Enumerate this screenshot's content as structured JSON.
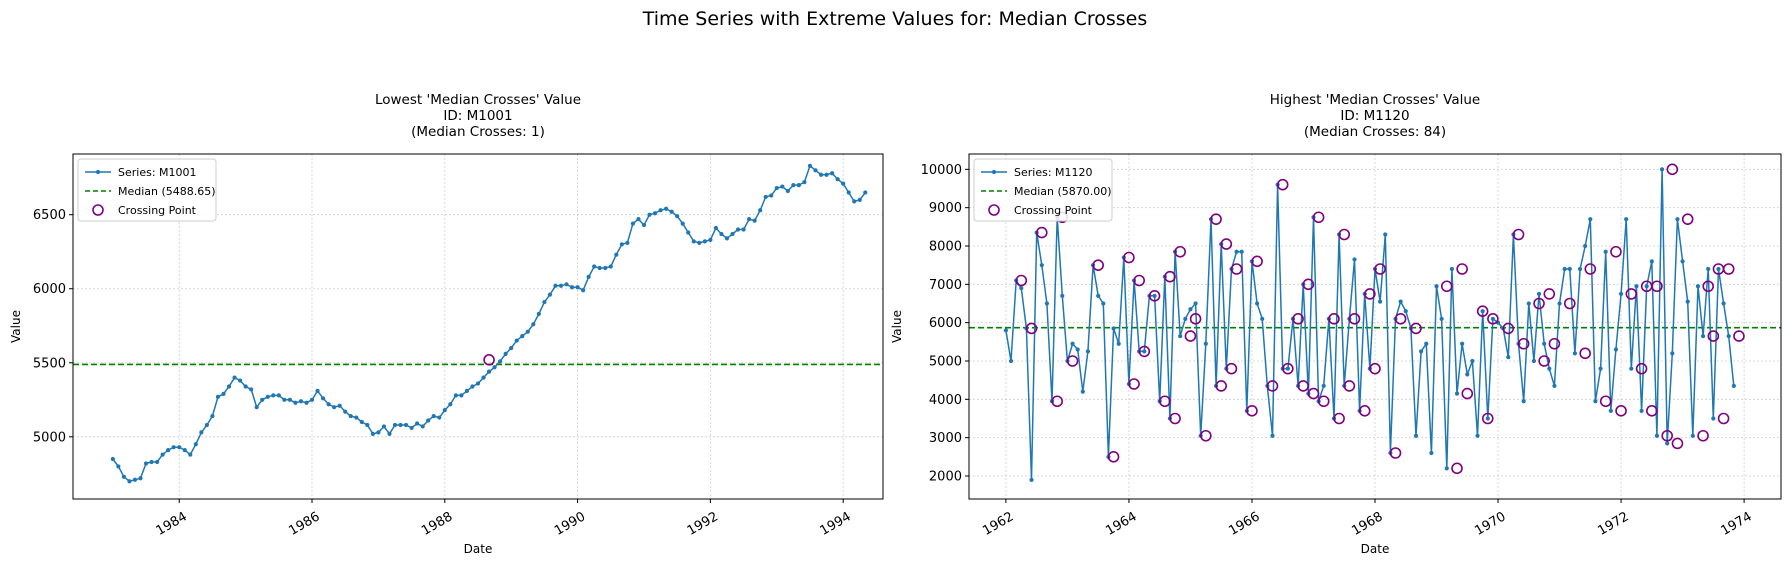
{
  "figure": {
    "suptitle": "Time Series with Extreme Values for: Median Crosses",
    "xlabel": "Date",
    "ylabel": "Value"
  },
  "colors": {
    "series": "#1f77b4",
    "median": "#008000",
    "crossing": "#800080",
    "grid": "#b0b0b0"
  },
  "chart_data": [
    {
      "type": "line",
      "title_lines": [
        "Lowest 'Median Crosses' Value",
        "ID: M1001",
        "(Median Crosses: 1)"
      ],
      "legend": {
        "series": "Series: M1001",
        "median": "Median (5488.65)",
        "crossing": "Crossing Point",
        "position": "upper-left"
      },
      "median": 5488.65,
      "start": [
        1983,
        1
      ],
      "xlim": [
        1982.4,
        1994.6
      ],
      "ylim": [
        4580,
        6910
      ],
      "xticks": [
        "1984",
        "1986",
        "1988",
        "1990",
        "1992",
        "1994"
      ],
      "yticks": [
        "5000",
        "5500",
        "6000",
        "6500"
      ],
      "xtick_rotation": 30,
      "grid": true,
      "values": [
        4850,
        4800,
        4730,
        4700,
        4710,
        4720,
        4820,
        4830,
        4830,
        4880,
        4910,
        4930,
        4930,
        4910,
        4880,
        4950,
        5030,
        5080,
        5140,
        5270,
        5290,
        5340,
        5400,
        5380,
        5340,
        5320,
        5200,
        5250,
        5270,
        5280,
        5280,
        5250,
        5250,
        5230,
        5240,
        5230,
        5250,
        5310,
        5260,
        5220,
        5200,
        5210,
        5170,
        5140,
        5130,
        5100,
        5080,
        5020,
        5030,
        5070,
        5020,
        5080,
        5080,
        5080,
        5060,
        5090,
        5070,
        5110,
        5140,
        5130,
        5180,
        5220,
        5280,
        5280,
        5310,
        5340,
        5360,
        5400,
        5440,
        5470,
        5510,
        5560,
        5600,
        5650,
        5680,
        5710,
        5760,
        5830,
        5910,
        5960,
        6020,
        6020,
        6030,
        6010,
        6010,
        5990,
        6080,
        6150,
        6140,
        6140,
        6150,
        6230,
        6300,
        6310,
        6440,
        6470,
        6430,
        6500,
        6510,
        6530,
        6540,
        6520,
        6490,
        6440,
        6380,
        6320,
        6310,
        6320,
        6330,
        6410,
        6370,
        6340,
        6370,
        6400,
        6400,
        6470,
        6460,
        6530,
        6620,
        6630,
        6680,
        6690,
        6660,
        6700,
        6700,
        6720,
        6830,
        6800,
        6770,
        6770,
        6780,
        6740,
        6710,
        6650,
        6590,
        6600,
        6650
      ],
      "crossings": [
        {
          "x": "1988-09",
          "y": 5520
        }
      ]
    },
    {
      "type": "line",
      "title_lines": [
        "Highest 'Median Crosses' Value",
        "ID: M1120",
        "(Median Crosses: 84)"
      ],
      "legend": {
        "series": "Series: M1120",
        "median": "Median (5870.00)",
        "crossing": "Crossing Point",
        "position": "upper-left"
      },
      "median": 5870.0,
      "start": [
        1962,
        1
      ],
      "xlim": [
        1961.4,
        1974.6
      ],
      "ylim": [
        1400,
        10400
      ],
      "xticks": [
        "1962",
        "1964",
        "1966",
        "1968",
        "1970",
        "1972",
        "1974"
      ],
      "yticks": [
        "2000",
        "3000",
        "4000",
        "5000",
        "6000",
        "7000",
        "8000",
        "9000",
        "10000"
      ],
      "xtick_rotation": 30,
      "grid": true,
      "values": [
        5800,
        5000,
        7100,
        6900,
        5850,
        1900,
        8350,
        7500,
        6500,
        3950,
        8750,
        6700,
        5000,
        5450,
        5300,
        4200,
        5250,
        7500,
        6700,
        6500,
        2500,
        5850,
        5450,
        7700,
        4400,
        7100,
        5250,
        5250,
        6700,
        6700,
        3950,
        7200,
        3500,
        7850,
        5650,
        6100,
        6350,
        6500,
        3050,
        5450,
        8700,
        4350,
        8050,
        4800,
        7400,
        7850,
        7850,
        3700,
        7600,
        6500,
        6100,
        4350,
        3050,
        9600,
        4800,
        4800,
        6100,
        4350,
        7000,
        4150,
        8750,
        3950,
        4350,
        6100,
        3500,
        8300,
        4350,
        6100,
        7650,
        3700,
        6750,
        4800,
        7400,
        6550,
        8300,
        2600,
        6100,
        6550,
        6300,
        5850,
        3050,
        5250,
        5450,
        2600,
        6950,
        6100,
        2200,
        7400,
        4150,
        5450,
        4650,
        5000,
        3050,
        6300,
        3500,
        6100,
        6000,
        5850,
        5100,
        8300,
        5450,
        3950,
        6500,
        5000,
        6750,
        5450,
        4800,
        4350,
        6500,
        7400,
        7400,
        5200,
        7400,
        8000,
        8700,
        3950,
        4800,
        7850,
        3700,
        5300,
        6750,
        8700,
        4800,
        6950,
        3700,
        6950,
        7600,
        3050,
        10000,
        2850,
        5200,
        8700,
        7600,
        6550,
        3050,
        6950,
        5650,
        7400,
        3500,
        7400,
        6500,
        5650,
        4350
      ],
      "crossings": [
        {
          "x": "1962-04",
          "y": 7100
        },
        {
          "x": "1962-06",
          "y": 5850
        },
        {
          "x": "1962-08",
          "y": 8350
        },
        {
          "x": "1962-11",
          "y": 3950
        },
        {
          "x": "1962-12",
          "y": 8750
        },
        {
          "x": "1963-02",
          "y": 5000
        },
        {
          "x": "1963-07",
          "y": 7500
        },
        {
          "x": "1963-10",
          "y": 2500
        },
        {
          "x": "1964-01",
          "y": 7700
        },
        {
          "x": "1964-02",
          "y": 4400
        },
        {
          "x": "1964-03",
          "y": 7100
        },
        {
          "x": "1964-04",
          "y": 5250
        },
        {
          "x": "1964-06",
          "y": 6700
        },
        {
          "x": "1964-08",
          "y": 3950
        },
        {
          "x": "1964-09",
          "y": 7200
        },
        {
          "x": "1964-10",
          "y": 3500
        },
        {
          "x": "1964-11",
          "y": 7850
        },
        {
          "x": "1965-01",
          "y": 5650
        },
        {
          "x": "1965-02",
          "y": 6100
        },
        {
          "x": "1965-04",
          "y": 3050
        },
        {
          "x": "1965-06",
          "y": 8700
        },
        {
          "x": "1965-07",
          "y": 4350
        },
        {
          "x": "1965-08",
          "y": 8050
        },
        {
          "x": "1965-09",
          "y": 4800
        },
        {
          "x": "1965-10",
          "y": 7400
        },
        {
          "x": "1966-01",
          "y": 3700
        },
        {
          "x": "1966-02",
          "y": 7600
        },
        {
          "x": "1966-05",
          "y": 4350
        },
        {
          "x": "1966-07",
          "y": 9600
        },
        {
          "x": "1966-08",
          "y": 4800
        },
        {
          "x": "1966-10",
          "y": 6100
        },
        {
          "x": "1966-11",
          "y": 4350
        },
        {
          "x": "1966-12",
          "y": 7000
        },
        {
          "x": "1967-01",
          "y": 4150
        },
        {
          "x": "1967-02",
          "y": 8750
        },
        {
          "x": "1967-03",
          "y": 3950
        },
        {
          "x": "1967-05",
          "y": 6100
        },
        {
          "x": "1967-06",
          "y": 3500
        },
        {
          "x": "1967-07",
          "y": 8300
        },
        {
          "x": "1967-08",
          "y": 4350
        },
        {
          "x": "1967-09",
          "y": 6100
        },
        {
          "x": "1967-11",
          "y": 3700
        },
        {
          "x": "1967-12",
          "y": 6750
        },
        {
          "x": "1968-01",
          "y": 4800
        },
        {
          "x": "1968-02",
          "y": 7400
        },
        {
          "x": "1968-05",
          "y": 2600
        },
        {
          "x": "1968-06",
          "y": 6100
        },
        {
          "x": "1968-09",
          "y": 5850
        },
        {
          "x": "1969-03",
          "y": 6950
        },
        {
          "x": "1969-05",
          "y": 2200
        },
        {
          "x": "1969-06",
          "y": 7400
        },
        {
          "x": "1969-07",
          "y": 4150
        },
        {
          "x": "1969-10",
          "y": 6300
        },
        {
          "x": "1969-11",
          "y": 3500
        },
        {
          "x": "1969-12",
          "y": 6100
        },
        {
          "x": "1970-03",
          "y": 5850
        },
        {
          "x": "1970-05",
          "y": 8300
        },
        {
          "x": "1970-06",
          "y": 5450
        },
        {
          "x": "1970-09",
          "y": 6500
        },
        {
          "x": "1970-10",
          "y": 5000
        },
        {
          "x": "1970-11",
          "y": 6750
        },
        {
          "x": "1970-12",
          "y": 5450
        },
        {
          "x": "1971-03",
          "y": 6500
        },
        {
          "x": "1971-06",
          "y": 5200
        },
        {
          "x": "1971-07",
          "y": 7400
        },
        {
          "x": "1971-10",
          "y": 3950
        },
        {
          "x": "1971-12",
          "y": 7850
        },
        {
          "x": "1972-01",
          "y": 3700
        },
        {
          "x": "1972-03",
          "y": 6750
        },
        {
          "x": "1972-05",
          "y": 4800
        },
        {
          "x": "1972-06",
          "y": 6950
        },
        {
          "x": "1972-07",
          "y": 3700
        },
        {
          "x": "1972-08",
          "y": 6950
        },
        {
          "x": "1972-10",
          "y": 3050
        },
        {
          "x": "1972-11",
          "y": 10000
        },
        {
          "x": "1972-12",
          "y": 2850
        },
        {
          "x": "1973-02",
          "y": 8700
        },
        {
          "x": "1973-05",
          "y": 3050
        },
        {
          "x": "1973-06",
          "y": 6950
        },
        {
          "x": "1973-07",
          "y": 5650
        },
        {
          "x": "1973-08",
          "y": 7400
        },
        {
          "x": "1973-09",
          "y": 3500
        },
        {
          "x": "1973-10",
          "y": 7400
        },
        {
          "x": "1973-12",
          "y": 5650
        }
      ]
    }
  ]
}
